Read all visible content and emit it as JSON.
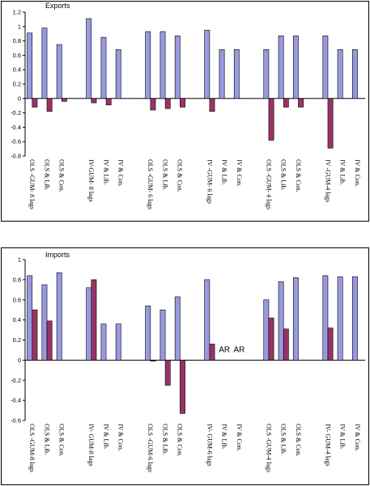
{
  "colors": {
    "series1": "#9999e0",
    "series2": "#993366",
    "axis": "#000000"
  },
  "chart_data": [
    {
      "type": "bar",
      "title": "Exports",
      "ylim": [
        -0.8,
        1.2
      ],
      "yticks": [
        -0.8,
        -0.6,
        -0.4,
        -0.2,
        0,
        0.2,
        0.4,
        0.6,
        0.8,
        1,
        1.2
      ],
      "grid": false,
      "legend": "none",
      "categories": [
        "OLS -GUM- 8 lags",
        "OLS & Lib.",
        "OLS & Con.",
        "IV-GUM- 8 lags",
        "IV & Lib.",
        "IV & Con.",
        "OLS -GUM- 6 lags",
        "OLS & Lib.",
        "OLS & Con.",
        "IV -GUM- 6 lags",
        "IV & Lib.",
        "IV & Con.",
        "OLS -GUM- 4 lags",
        "OLS & Lib.",
        "OLS & Con.",
        "IV -GUM-4 lags",
        "IV & Lib.",
        "IV & Con."
      ],
      "gaps_after": [
        2,
        5,
        8,
        11,
        14
      ],
      "series": [
        {
          "values": [
            0.91,
            0.98,
            0.75,
            1.11,
            0.85,
            0.68,
            0.93,
            0.93,
            0.87,
            0.95,
            0.68,
            0.68,
            0.68,
            0.87,
            0.87,
            0.87,
            0.68,
            0.68
          ]
        },
        {
          "values": [
            -0.12,
            -0.18,
            -0.04,
            -0.06,
            -0.09,
            null,
            -0.16,
            -0.14,
            -0.12,
            -0.18,
            null,
            null,
            -0.58,
            -0.12,
            -0.12,
            -0.69,
            null,
            null
          ]
        }
      ],
      "annotations": []
    },
    {
      "type": "bar",
      "title": "Imports",
      "ylim": [
        -0.6,
        1.0
      ],
      "yticks": [
        -0.6,
        -0.4,
        -0.2,
        0,
        0.2,
        0.4,
        0.6,
        0.8,
        1
      ],
      "grid": false,
      "legend": "none",
      "categories": [
        "OLS -GUM-8 lags",
        "OLS & Lib.",
        "OLS & Con.",
        "IV- GUM-8 lags",
        "IV & Lib.",
        "IV & Con.",
        "OLS -GUM-6 lags",
        "OLS & Lib.",
        "OLS & Con.",
        "IV- GUM-6 lags",
        "IV & Lib.",
        "IV & Con.",
        "OLS -GUM-4 lags",
        "OLS & Lib.",
        "OLS & Con.",
        "IV- GUM-4 lags",
        "IV & Lib.",
        "IV & Con."
      ],
      "gaps_after": [
        2,
        5,
        8,
        11,
        14
      ],
      "series": [
        {
          "values": [
            0.84,
            0.75,
            0.87,
            0.72,
            0.36,
            0.36,
            0.54,
            0.5,
            0.63,
            0.8,
            null,
            null,
            0.6,
            0.78,
            0.82,
            0.84,
            0.83,
            0.83
          ]
        },
        {
          "values": [
            0.5,
            0.39,
            null,
            0.8,
            null,
            null,
            -0.01,
            -0.25,
            -0.53,
            0.16,
            null,
            null,
            0.42,
            0.31,
            null,
            0.32,
            null,
            null
          ]
        }
      ],
      "annotations": [
        {
          "text": "AR",
          "category": 10
        },
        {
          "text": "AR",
          "category": 11
        }
      ]
    }
  ]
}
